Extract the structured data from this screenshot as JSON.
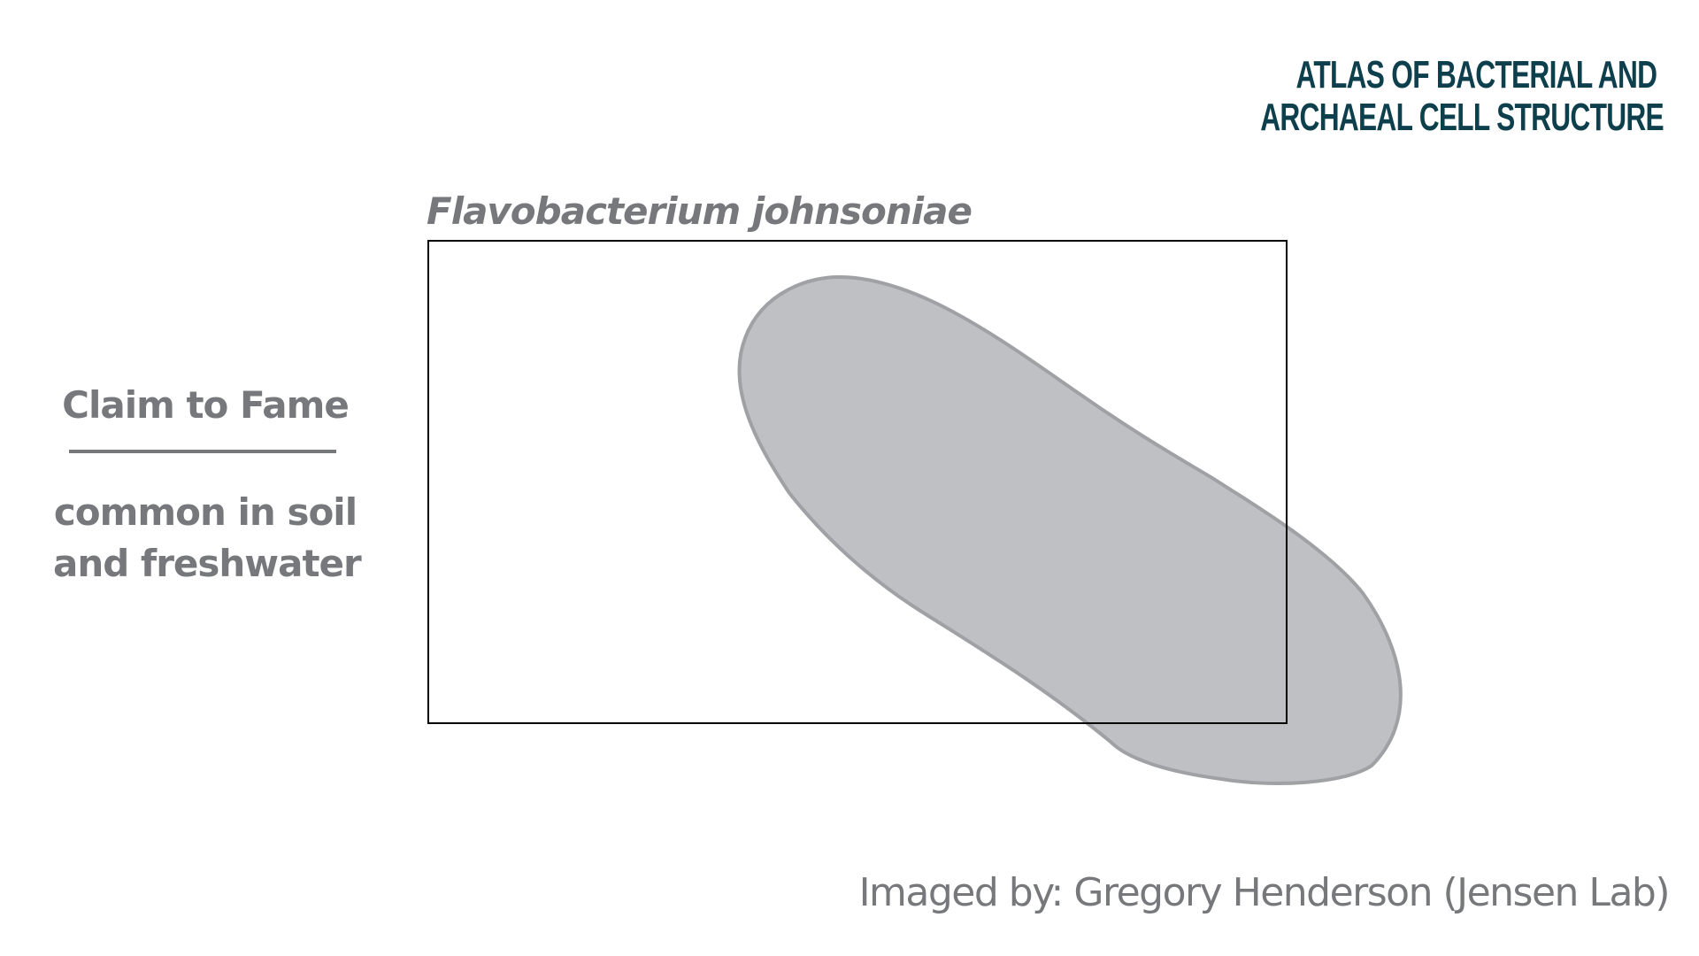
{
  "logo": {
    "line1": "Atlas of Bacterial and",
    "line2": "Archaeal Cell Structure",
    "color": "#0d3f4c"
  },
  "figure": {
    "species": "Flavobacterium johnsoniae",
    "cell_fill_color": "#bfc0c3",
    "cell_outline_color": "#a0a1a4",
    "frame_color": "#000000"
  },
  "claim": {
    "heading": "Claim to Fame",
    "line1": "common in soil",
    "line2": "and freshwater"
  },
  "credit": {
    "text": "Imaged by: Gregory Henderson (Jensen Lab)"
  },
  "colors": {
    "text_gray": "#77787b"
  }
}
